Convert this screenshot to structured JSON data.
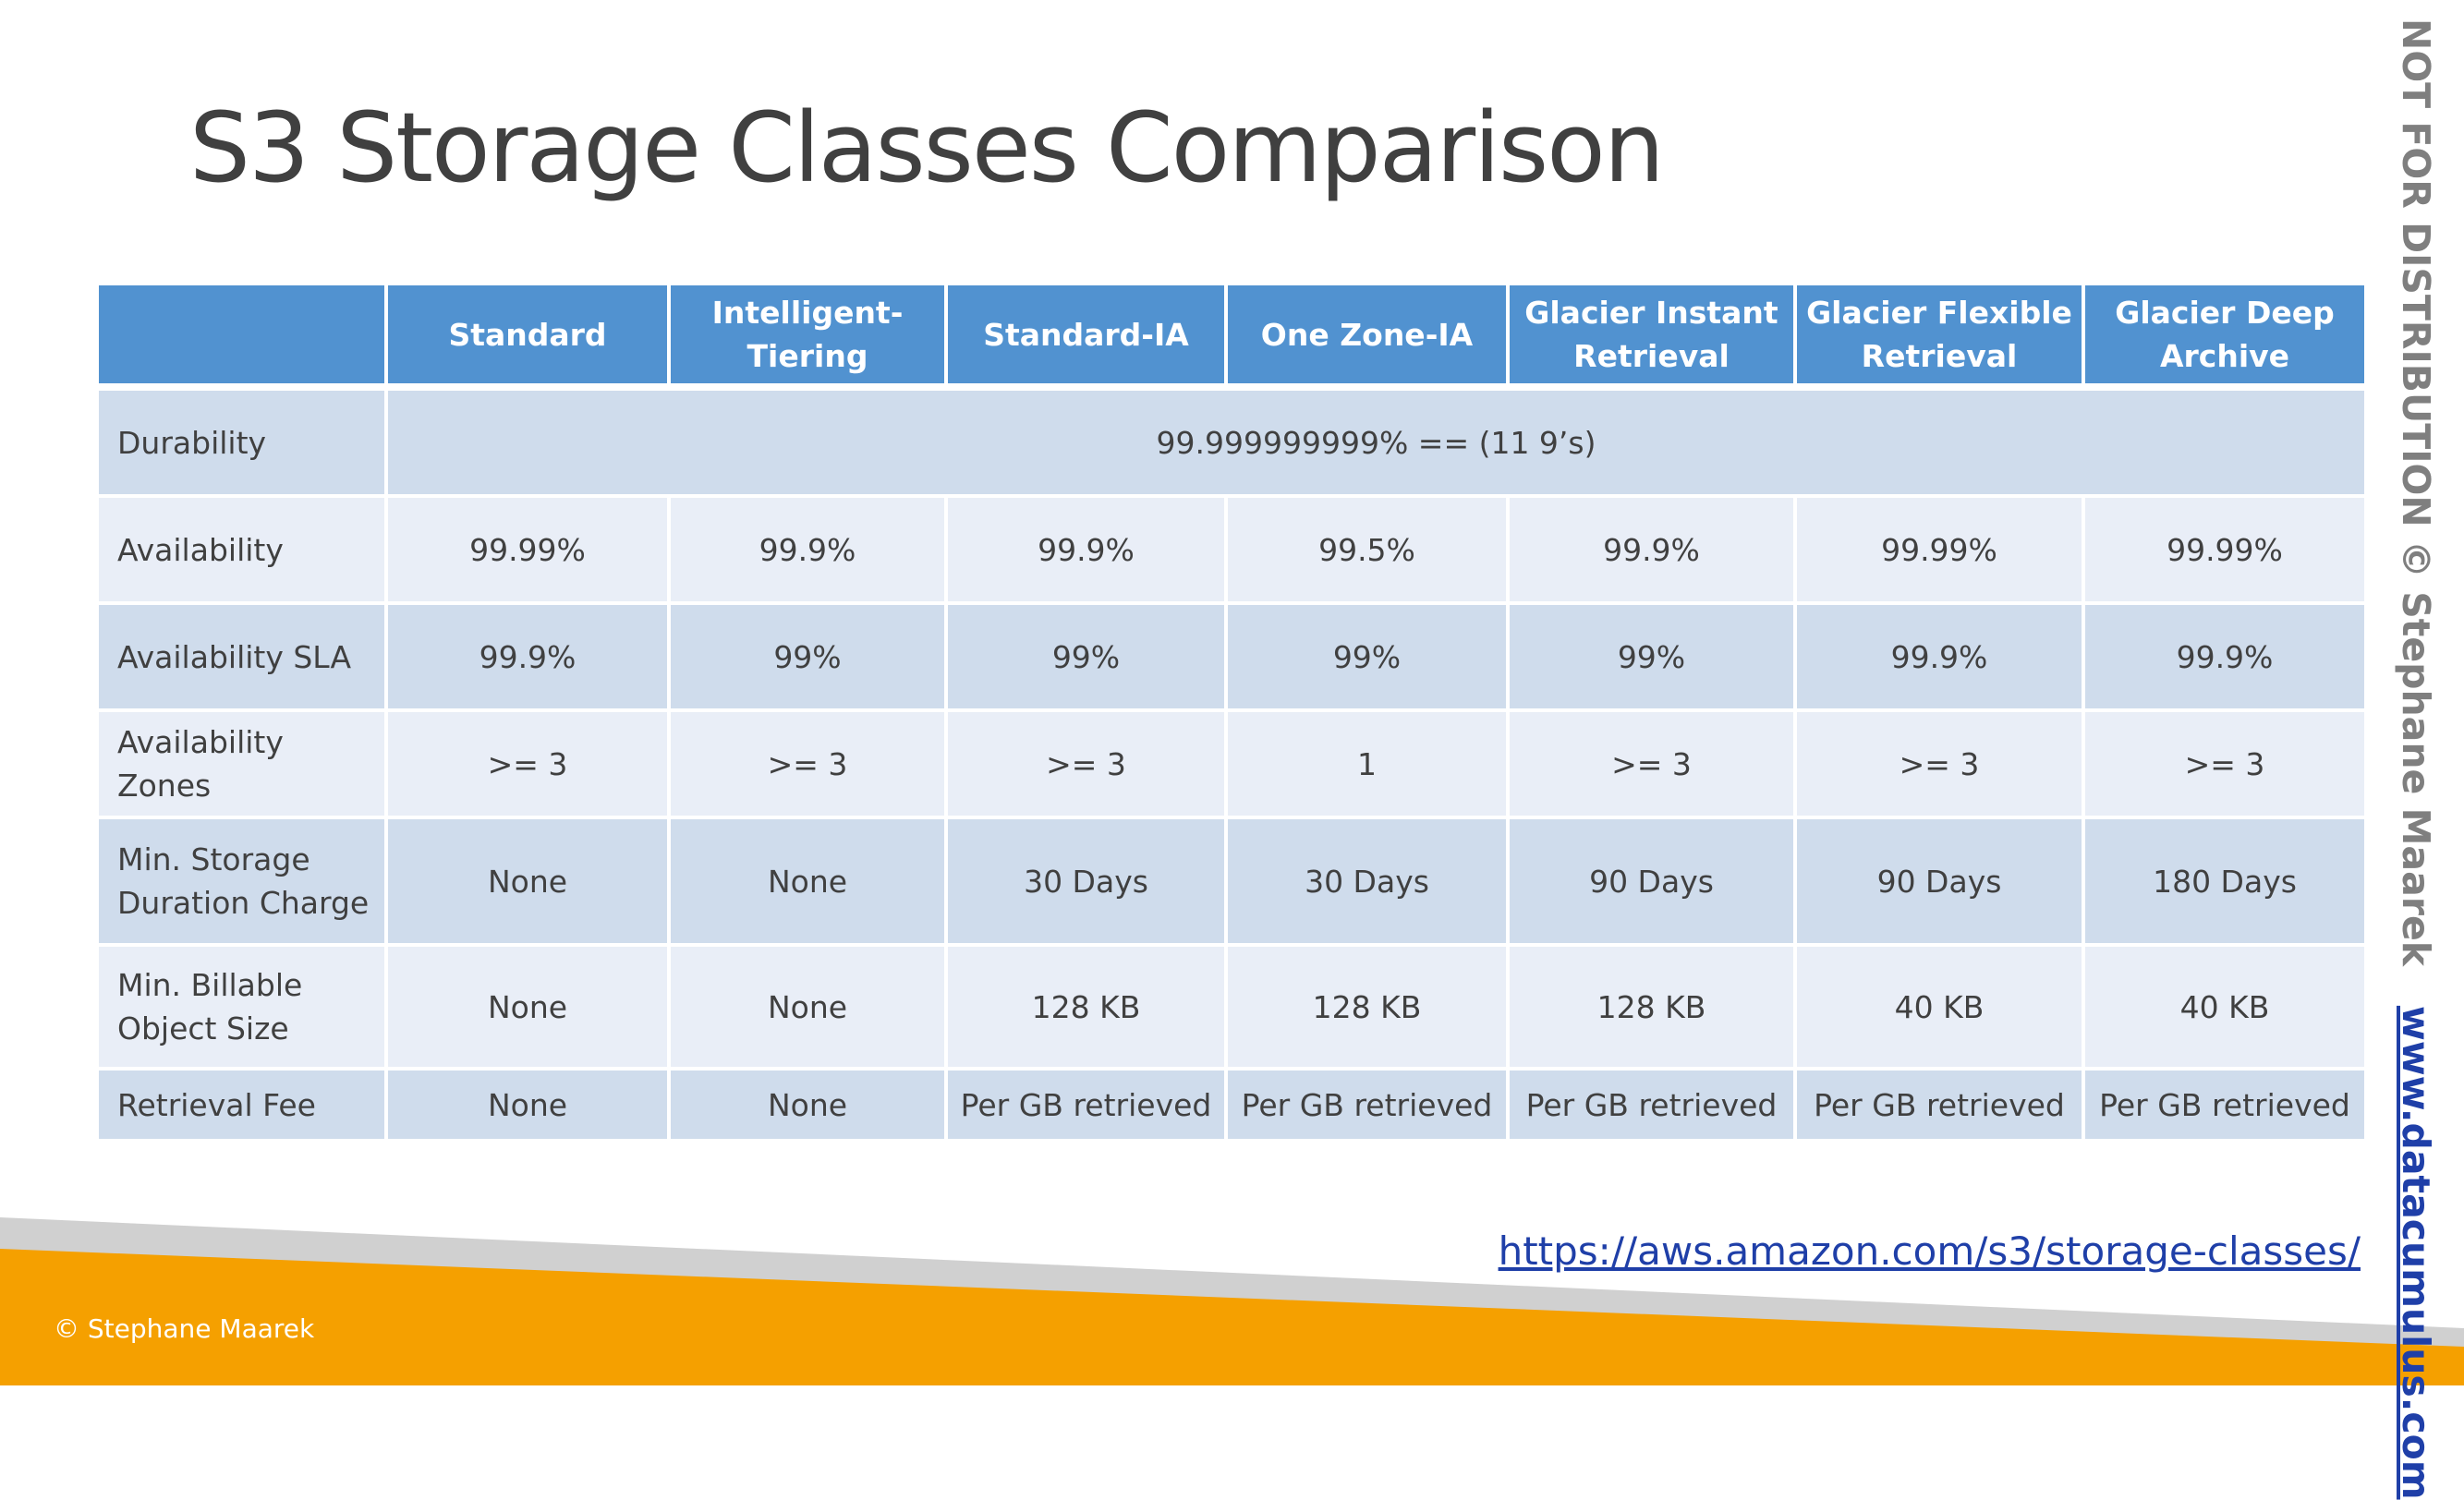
{
  "title": "S3 Storage Classes Comparison",
  "table": {
    "headers": [
      "",
      "Standard",
      "Intelligent-Tiering",
      "Standard-IA",
      "One Zone-IA",
      "Glacier Instant Retrieval",
      "Glacier Flexible Retrieval",
      "Glacier Deep Archive"
    ],
    "durability": {
      "label": "Durability",
      "value": "99.999999999% == (11 9’s)"
    },
    "rows": [
      {
        "label": "Availability",
        "values": [
          "99.99%",
          "99.9%",
          "99.9%",
          "99.5%",
          "99.9%",
          "99.99%",
          "99.99%"
        ]
      },
      {
        "label": "Availability SLA",
        "values": [
          "99.9%",
          "99%",
          "99%",
          "99%",
          "99%",
          "99.9%",
          "99.9%"
        ]
      },
      {
        "label": "Availability Zones",
        "values": [
          ">= 3",
          ">= 3",
          ">= 3",
          "1",
          ">= 3",
          ">= 3",
          ">= 3"
        ]
      },
      {
        "label": "Min. Storage Duration Charge",
        "values": [
          "None",
          "None",
          "30 Days",
          "30 Days",
          "90 Days",
          "90 Days",
          "180 Days"
        ]
      },
      {
        "label": "Min. Billable Object Size",
        "values": [
          "None",
          "None",
          "128 KB",
          "128 KB",
          "128 KB",
          "40 KB",
          "40 KB"
        ]
      },
      {
        "label": "Retrieval Fee",
        "values": [
          "None",
          "None",
          "Per GB retrieved",
          "Per GB retrieved",
          "Per GB retrieved",
          "Per GB retrieved",
          "Per GB retrieved"
        ]
      }
    ]
  },
  "source_link": "https://aws.amazon.com/s3/storage-classes/",
  "copyright": "© Stephane Maarek",
  "watermark": {
    "text": "NOT FOR DISTRIBUTION © Stephane Maarek",
    "link": "www.datacumulus.com"
  },
  "colors": {
    "header_bg": "#5192d0",
    "row_dark": "#cfdcec",
    "row_light": "#e9eef7",
    "footer_orange": "#f5a000",
    "footer_gray": "#d0d0d0",
    "link_blue": "#1f3fa8"
  }
}
